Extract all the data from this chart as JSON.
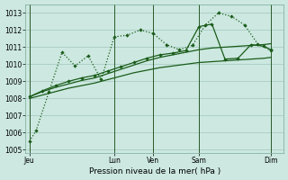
{
  "background_color": "#cce8e0",
  "grid_color": "#aaccc4",
  "line_color": "#1a5c1a",
  "title": "Pression niveau de la mer( hPa )",
  "ylabel_ticks": [
    1005,
    1006,
    1007,
    1008,
    1009,
    1010,
    1011,
    1012,
    1013
  ],
  "ylim": [
    1004.8,
    1013.5
  ],
  "xlim": [
    -0.3,
    19.5
  ],
  "xtick_positions": [
    0,
    6.5,
    9.5,
    13,
    18.5
  ],
  "xtick_labels": [
    "Jeu",
    "Lun",
    "Ven",
    "Sam",
    "Dim"
  ],
  "vlines": [
    0,
    6.5,
    9.5,
    13,
    18.5
  ],
  "line_dotted_x": [
    0,
    0.5,
    1.5,
    2.5,
    3.5,
    4.5,
    5.5,
    6.5,
    7.5,
    8.5,
    9.5,
    10.5,
    11.5,
    12.5,
    13.5,
    14.5,
    15.5,
    16.5,
    17.5,
    18.5
  ],
  "line_dotted_y": [
    1005.5,
    1006.1,
    1008.4,
    1010.7,
    1009.9,
    1010.5,
    1009.1,
    1011.6,
    1011.7,
    1012.0,
    1011.8,
    1011.15,
    1010.85,
    1011.1,
    1012.3,
    1013.0,
    1012.8,
    1012.3,
    1011.2,
    1010.8
  ],
  "line_solid_upper_x": [
    0,
    1,
    2,
    3,
    4,
    5,
    6,
    7,
    8,
    9,
    10,
    11,
    12,
    13,
    14,
    15,
    16,
    17,
    18,
    18.5
  ],
  "line_solid_upper_y": [
    1008.1,
    1008.4,
    1008.65,
    1008.85,
    1009.05,
    1009.2,
    1009.45,
    1009.7,
    1009.95,
    1010.2,
    1010.4,
    1010.55,
    1010.7,
    1010.85,
    1010.95,
    1011.0,
    1011.05,
    1011.1,
    1011.15,
    1011.2
  ],
  "line_solid_lower_x": [
    0,
    1,
    2,
    3,
    4,
    5,
    6,
    7,
    8,
    9,
    10,
    11,
    12,
    13,
    14,
    15,
    16,
    17,
    18,
    18.5
  ],
  "line_solid_lower_y": [
    1008.0,
    1008.2,
    1008.4,
    1008.6,
    1008.75,
    1008.9,
    1009.1,
    1009.3,
    1009.5,
    1009.65,
    1009.8,
    1009.9,
    1010.0,
    1010.1,
    1010.15,
    1010.2,
    1010.25,
    1010.3,
    1010.35,
    1010.4
  ],
  "line_marker_x": [
    0,
    1,
    2,
    3,
    4,
    5,
    6,
    7,
    8,
    9,
    10,
    11,
    12,
    13,
    14,
    15,
    16,
    17,
    18,
    18.5
  ],
  "line_marker_y": [
    1008.1,
    1008.45,
    1008.75,
    1009.0,
    1009.2,
    1009.35,
    1009.6,
    1009.85,
    1010.1,
    1010.35,
    1010.55,
    1010.65,
    1010.8,
    1012.2,
    1012.35,
    1010.3,
    1010.35,
    1011.15,
    1011.05,
    1010.85
  ]
}
